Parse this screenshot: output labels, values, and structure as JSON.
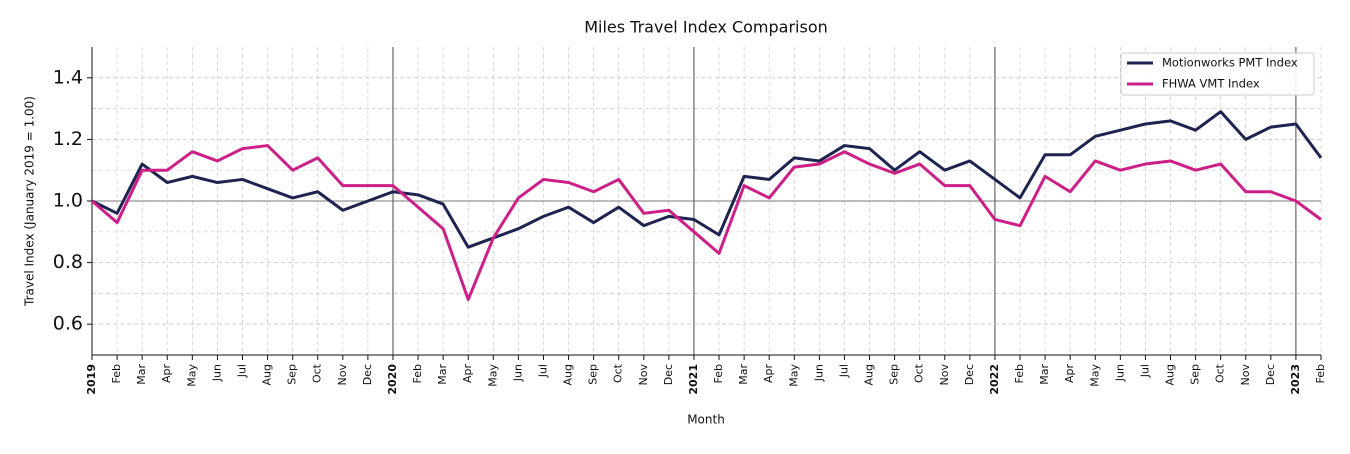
{
  "chart_data": {
    "type": "line",
    "title": "Miles Travel Index Comparison",
    "x_label": "Month",
    "y_label": "Travel Index (January 2019 = 1.00)",
    "categories": [
      "2019",
      "Feb",
      "Mar",
      "Apr",
      "May",
      "Jun",
      "Jul",
      "Aug",
      "Sep",
      "Oct",
      "Nov",
      "Dec",
      "2020",
      "Feb",
      "Mar",
      "Apr",
      "May",
      "Jun",
      "Jul",
      "Aug",
      "Sep",
      "Oct",
      "Nov",
      "Dec",
      "2021",
      "Feb",
      "Mar",
      "Apr",
      "May",
      "Jun",
      "Jul",
      "Aug",
      "Sep",
      "Oct",
      "Nov",
      "Dec",
      "2022",
      "Feb",
      "Mar",
      "Apr",
      "May",
      "Jun",
      "Jul",
      "Aug",
      "Sep",
      "Oct",
      "Nov",
      "Dec",
      "2023",
      "Feb"
    ],
    "series": [
      {
        "name": "Motionworks PMT Index",
        "color": "#1f2350",
        "values": [
          1.0,
          0.96,
          1.12,
          1.06,
          1.08,
          1.06,
          1.07,
          1.04,
          1.01,
          1.03,
          0.97,
          1.0,
          1.03,
          1.02,
          0.99,
          0.85,
          0.88,
          0.91,
          0.95,
          0.98,
          0.93,
          0.98,
          0.92,
          0.95,
          0.94,
          0.89,
          1.08,
          1.07,
          1.14,
          1.13,
          1.18,
          1.17,
          1.1,
          1.16,
          1.1,
          1.13,
          1.07,
          1.01,
          1.15,
          1.15,
          1.21,
          1.23,
          1.25,
          1.26,
          1.23,
          1.29,
          1.2,
          1.24,
          1.25,
          1.14
        ]
      },
      {
        "name": "FHWA VMT Index",
        "color": "#cc1f87",
        "values": [
          1.0,
          0.93,
          1.1,
          1.1,
          1.16,
          1.13,
          1.17,
          1.18,
          1.1,
          1.14,
          1.05,
          1.05,
          1.05,
          0.98,
          0.91,
          0.68,
          0.88,
          1.01,
          1.07,
          1.06,
          1.03,
          1.07,
          0.96,
          0.97,
          0.9,
          0.83,
          1.05,
          1.01,
          1.11,
          1.12,
          1.16,
          1.12,
          1.09,
          1.12,
          1.05,
          1.05,
          0.94,
          0.92,
          1.08,
          1.03,
          1.13,
          1.1,
          1.12,
          1.13,
          1.1,
          1.12,
          1.03,
          1.03,
          1.0,
          0.94
        ]
      }
    ],
    "ylim": [
      0.5,
      1.5
    ],
    "yticks": [
      0.6,
      0.8,
      {
        "value": 1,
        "label": "1.0"
      },
      1.2,
      1.4
    ],
    "grid": true,
    "legend": "upper right"
  }
}
